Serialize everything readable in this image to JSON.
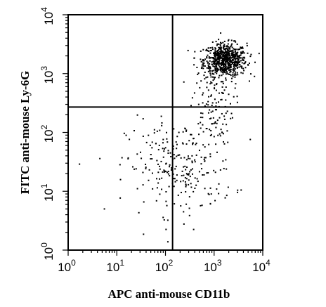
{
  "chart_data": {
    "type": "scatter",
    "title": "",
    "xlabel": "APC anti-mouse CD11b",
    "ylabel": "FITC anti-mouse Ly-6G",
    "x_scale": "log",
    "y_scale": "log",
    "xlim": [
      1,
      10000
    ],
    "ylim": [
      1,
      10000
    ],
    "x_ticks": [
      {
        "base": "10",
        "exp": "0"
      },
      {
        "base": "10",
        "exp": "1"
      },
      {
        "base": "10",
        "exp": "2"
      },
      {
        "base": "10",
        "exp": "3"
      },
      {
        "base": "10",
        "exp": "4"
      }
    ],
    "y_ticks": [
      {
        "base": "10",
        "exp": "0"
      },
      {
        "base": "10",
        "exp": "1"
      },
      {
        "base": "10",
        "exp": "2"
      },
      {
        "base": "10",
        "exp": "3"
      },
      {
        "base": "10",
        "exp": "4"
      }
    ],
    "gates": {
      "x": 140,
      "y": 270
    },
    "grid": false,
    "legend": "none",
    "populations": [
      {
        "x_center": 1700,
        "y_center": 1700,
        "x_spread": 0.22,
        "y_spread": 0.14,
        "count": 700
      },
      {
        "x_center": 900,
        "y_center": 300,
        "x_spread": 0.22,
        "y_spread": 0.35,
        "count": 120
      },
      {
        "x_center": 200,
        "y_center": 25,
        "x_spread": 0.55,
        "y_spread": 0.4,
        "count": 260
      }
    ]
  }
}
